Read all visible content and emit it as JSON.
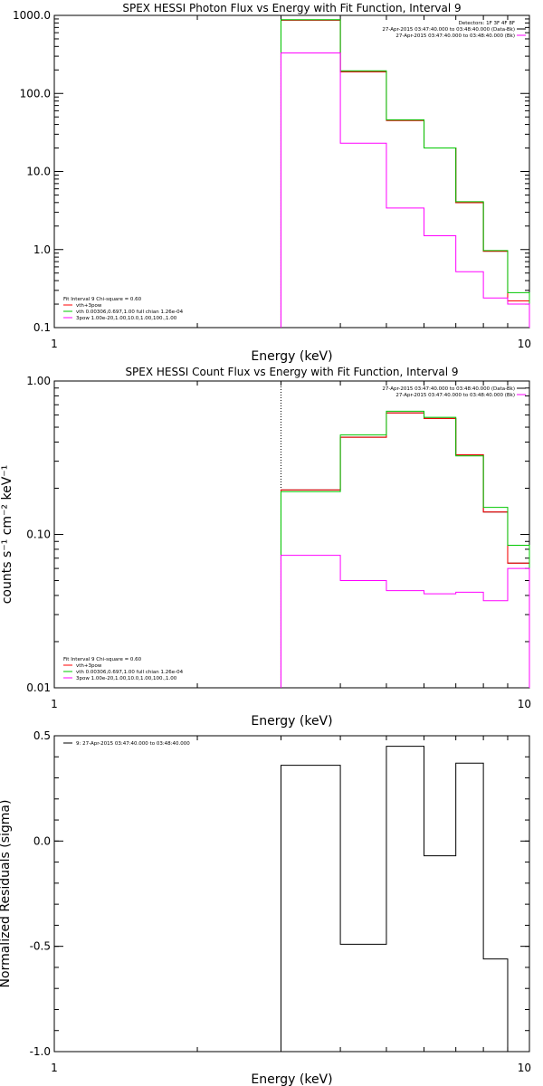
{
  "chart_data": [
    {
      "type": "line",
      "title": "SPEX HESSI Photon Flux vs Energy with Fit Function, Interval 9",
      "xlabel": "Energy (keV)",
      "ylabel": "",
      "xscale": "log",
      "yscale": "log",
      "xlim": [
        1,
        10
      ],
      "ylim": [
        0.1,
        1000
      ],
      "x_ticks": [
        {
          "value": 1,
          "label": "1"
        },
        {
          "value": 10,
          "label": "10"
        }
      ],
      "y_ticks": [
        {
          "value": 0.1,
          "label": "0.1"
        },
        {
          "value": 1,
          "label": "1.0"
        },
        {
          "value": 10,
          "label": "10.0"
        },
        {
          "value": 100,
          "label": "100.0"
        },
        {
          "value": 1000,
          "label": "1000.0"
        }
      ],
      "vline": 3,
      "bin_edges": [
        3,
        4,
        5,
        6,
        7,
        8,
        9,
        10
      ],
      "series": [
        {
          "name": "",
          "color": "#000000",
          "values": [
            870,
            190,
            45,
            20,
            4,
            0.95,
            0.22
          ]
        },
        {
          "name": "vth+3pow",
          "color": "#ff0000",
          "values": [
            870,
            190,
            45,
            20,
            4,
            0.95,
            0.22
          ]
        },
        {
          "name": "vth 0.00306,0.697,1.00  full chian 1.26e-04",
          "color": "#00c800",
          "values": [
            880,
            195,
            46,
            20,
            4.1,
            0.97,
            0.28
          ]
        },
        {
          "name": "3pow 1.00e-20,1.00,10.0,1.00,100.,1.00",
          "color": "#ff00ff",
          "values": [
            330,
            23,
            3.4,
            1.5,
            0.52,
            0.24,
            0.2
          ]
        }
      ],
      "legend_top": {
        "position": "top-right",
        "lines": [
          {
            "text": "Detectors: 1F 3F 4F 8F",
            "color": ""
          },
          {
            "text": "27-Apr-2015 03:47:40.000 to 03:48:40.000 (Data-Bk)",
            "color": "#000000"
          },
          {
            "text": "27-Apr-2015 03:47:40.000 to 03:48:40.000 (Bk)",
            "color": "#ff00ff"
          }
        ]
      },
      "legend_bottom": {
        "position": "bottom-left",
        "header": "Fit Interval 9   Chi-square = 0.60"
      }
    },
    {
      "type": "line",
      "title": "SPEX HESSI Count Flux vs Energy with Fit Function, Interval 9",
      "xlabel": "Energy (keV)",
      "ylabel": "counts s⁻¹ cm⁻² keV⁻¹",
      "xscale": "log",
      "yscale": "log",
      "xlim": [
        1,
        10
      ],
      "ylim": [
        0.01,
        1
      ],
      "x_ticks": [
        {
          "value": 1,
          "label": "1"
        },
        {
          "value": 10,
          "label": "10"
        }
      ],
      "y_ticks": [
        {
          "value": 0.01,
          "label": "0.01"
        },
        {
          "value": 0.1,
          "label": "0.10"
        },
        {
          "value": 1,
          "label": "1.00"
        }
      ],
      "vline": 3,
      "bin_edges": [
        3,
        4,
        5,
        6,
        7,
        8,
        9,
        10
      ],
      "series": [
        {
          "name": "",
          "color": "#000000",
          "values": [
            0.195,
            0.43,
            0.62,
            0.57,
            0.33,
            0.14,
            0.065
          ]
        },
        {
          "name": "vth+3pow",
          "color": "#ff0000",
          "values": [
            0.195,
            0.43,
            0.62,
            0.57,
            0.33,
            0.14,
            0.065
          ]
        },
        {
          "name": "vth 0.00306,0.697,1.00  full chian 1.26e-04",
          "color": "#00c800",
          "values": [
            0.19,
            0.445,
            0.635,
            0.58,
            0.325,
            0.15,
            0.085
          ]
        },
        {
          "name": "3pow 1.00e-20,1.00,10.0,1.00,100.,1.00",
          "color": "#ff00ff",
          "values": [
            0.073,
            0.05,
            0.043,
            0.041,
            0.042,
            0.037,
            0.06
          ]
        }
      ],
      "legend_top": {
        "position": "top-right",
        "lines": [
          {
            "text": "27-Apr-2015 03:47:40.000 to 03:48:40.000 (Data-Bk)",
            "color": "#000000"
          },
          {
            "text": "27-Apr-2015 03:47:40.000 to 03:48:40.000 (Bk)",
            "color": "#ff00ff"
          }
        ]
      },
      "legend_bottom": {
        "position": "bottom-left",
        "header": "Fit Interval 9   Chi-square = 0.60"
      }
    },
    {
      "type": "line",
      "title": "",
      "xlabel": "Energy (keV)",
      "ylabel": "Normalized Residuals (sigma)",
      "xscale": "log",
      "yscale": "linear",
      "xlim": [
        1,
        10
      ],
      "ylim": [
        -1.0,
        0.5
      ],
      "x_ticks": [
        {
          "value": 1,
          "label": "1"
        },
        {
          "value": 10,
          "label": "10"
        }
      ],
      "y_ticks": [
        {
          "value": -1.0,
          "label": "-1.0"
        },
        {
          "value": -0.5,
          "label": "-0.5"
        },
        {
          "value": 0.0,
          "label": "0.0"
        },
        {
          "value": 0.5,
          "label": "0.5"
        }
      ],
      "bin_edges": [
        3,
        4,
        5,
        6,
        7,
        8,
        9,
        10
      ],
      "series": [
        {
          "name": "9: 27-Apr-2015 03:47:40.000 to 03:48:40.000",
          "color": "#000000",
          "values": [
            0.36,
            -0.49,
            0.45,
            -0.07,
            0.37,
            -0.56,
            -1.0
          ]
        }
      ],
      "legend_top": {
        "position": "top-left",
        "lines": [
          {
            "text": "9: 27-Apr-2015 03:47:40.000 to 03:48:40.000",
            "color": "#000000"
          }
        ]
      }
    }
  ]
}
